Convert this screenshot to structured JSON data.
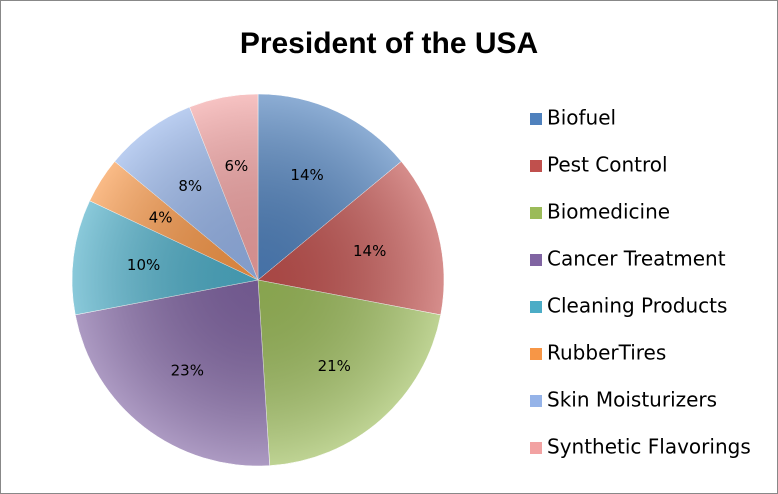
{
  "chart_data": {
    "type": "pie",
    "title": "President of the USA",
    "categories": [
      "Biofuel",
      "Pest Control",
      "Biomedicine",
      "Cancer Treatment",
      "Cleaning Products",
      "RubberTires",
      "Skin Moisturizers",
      "Synthetic Flavorings"
    ],
    "values": [
      14,
      14,
      21,
      23,
      10,
      4,
      8,
      6
    ],
    "value_labels": [
      "14%",
      "14%",
      "21%",
      "23%",
      "10%",
      "4%",
      "8%",
      "6%"
    ],
    "colors": [
      "#4f81bd",
      "#c0504d",
      "#9bbb59",
      "#8064a2",
      "#4bacc6",
      "#f79646",
      "#95b3e8",
      "#f2a2a2"
    ],
    "legend": "right"
  }
}
